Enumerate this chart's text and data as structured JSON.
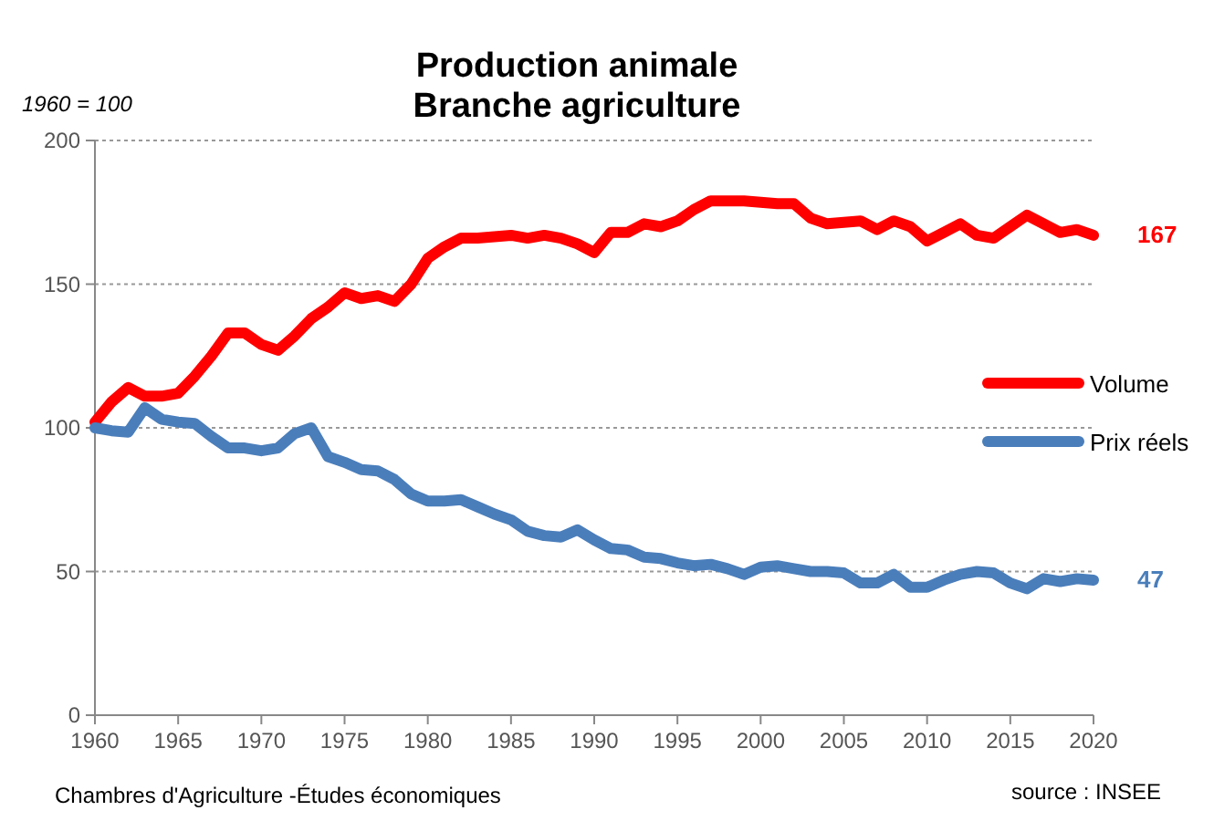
{
  "chart_data": {
    "type": "line",
    "title": "Production animale\nBranche agriculture",
    "annotations": [
      "1960 =  100",
      "Chambres d'Agriculture -Études économiques",
      "source : INSEE"
    ],
    "x": [
      1960,
      1961,
      1962,
      1963,
      1964,
      1965,
      1966,
      1967,
      1968,
      1969,
      1970,
      1971,
      1972,
      1973,
      1974,
      1975,
      1976,
      1977,
      1978,
      1979,
      1980,
      1981,
      1982,
      1983,
      1984,
      1985,
      1986,
      1987,
      1988,
      1989,
      1990,
      1991,
      1992,
      1993,
      1994,
      1995,
      1996,
      1997,
      1998,
      1999,
      2000,
      2001,
      2002,
      2003,
      2004,
      2005,
      2006,
      2007,
      2008,
      2009,
      2010,
      2011,
      2012,
      2013,
      2014,
      2015,
      2016,
      2017,
      2018,
      2019,
      2020
    ],
    "series": [
      {
        "name": "Volume",
        "color": "#ff0000",
        "values": [
          102,
          109,
          114,
          111,
          111,
          112,
          118,
          125,
          133,
          133,
          129,
          127,
          132,
          138,
          142,
          147,
          145,
          146,
          144,
          150,
          159,
          163,
          166,
          166,
          166.5,
          167,
          166,
          167,
          166,
          164,
          161,
          168,
          168,
          171,
          170,
          172,
          176,
          179,
          179,
          179,
          178.5,
          178,
          178,
          173,
          171,
          171.5,
          172,
          169,
          172,
          170,
          165,
          168,
          171,
          167,
          166,
          170,
          174,
          171,
          168,
          169,
          167
        ],
        "value_labels": [
          null,
          null,
          null,
          null,
          null,
          null,
          null,
          null,
          null,
          null,
          null,
          null,
          null,
          null,
          null,
          null,
          null,
          null,
          null,
          null,
          null,
          null,
          null,
          null,
          null,
          null,
          null,
          null,
          null,
          null,
          null,
          null,
          null,
          null,
          null,
          null,
          null,
          null,
          null,
          null,
          null,
          null,
          null,
          null,
          null,
          null,
          null,
          null,
          null,
          null,
          null,
          null,
          null,
          null,
          null,
          null,
          null,
          null,
          null,
          null,
          "167"
        ]
      },
      {
        "name": "Prix réels",
        "color": "#4a7ebb",
        "values": [
          100,
          99,
          98.5,
          107,
          103,
          102,
          101.5,
          97,
          93,
          93,
          92,
          93,
          98,
          100,
          90,
          88,
          85.5,
          85,
          82,
          77,
          74.5,
          74.5,
          75,
          72.5,
          70,
          68,
          64,
          62.5,
          62,
          64.5,
          61,
          58,
          57.5,
          55,
          54.5,
          53,
          52,
          52.5,
          51,
          49,
          51.5,
          52,
          51,
          50,
          50,
          49.5,
          46,
          46,
          49,
          44.5,
          44.5,
          47,
          49,
          50,
          49.5,
          46,
          44,
          47.5,
          46.5,
          47.5,
          47
        ],
        "value_labels": [
          null,
          null,
          null,
          null,
          null,
          null,
          null,
          null,
          null,
          null,
          null,
          null,
          null,
          null,
          null,
          null,
          null,
          null,
          null,
          null,
          null,
          null,
          null,
          null,
          null,
          null,
          null,
          null,
          null,
          null,
          null,
          null,
          null,
          null,
          null,
          null,
          null,
          null,
          null,
          null,
          null,
          null,
          null,
          null,
          null,
          null,
          null,
          null,
          null,
          null,
          null,
          null,
          null,
          null,
          null,
          null,
          null,
          null,
          null,
          null,
          "47"
        ]
      }
    ],
    "xlim": [
      1960,
      2020
    ],
    "xticks": [
      1960,
      1965,
      1970,
      1975,
      1980,
      1985,
      1990,
      1995,
      2000,
      2005,
      2010,
      2015,
      2020
    ],
    "ylim": [
      0,
      200
    ],
    "yticks": [
      0,
      50,
      100,
      150,
      200
    ],
    "grid": "y",
    "legend": "right",
    "marker": "none",
    "line_style": "solid"
  }
}
